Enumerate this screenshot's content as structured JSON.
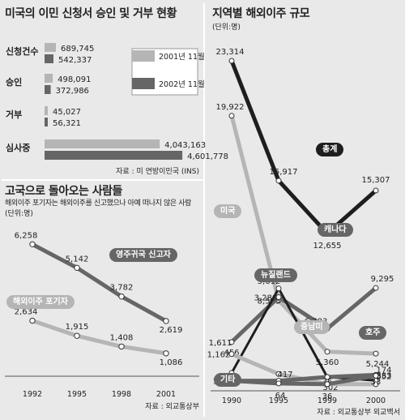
{
  "colors": {
    "background": "#e9e9e9",
    "series_light": "#b5b5b5",
    "series_dark": "#666666",
    "series_black": "#1e1e1e",
    "panel": "#ffffff"
  },
  "chart_data": [
    {
      "type": "bar",
      "title": "미국의 이민 신청서 승인 및 거부 현황",
      "categories": [
        "신청건수",
        "승인",
        "거부",
        "심사중"
      ],
      "series": [
        {
          "name": "2001년 11월",
          "values": [
            689745,
            498091,
            45027,
            4043163
          ],
          "labels": [
            "689,745",
            "498,091",
            "45,027",
            "4,043,163"
          ]
        },
        {
          "name": "2002년 11월",
          "values": [
            542337,
            372986,
            56321,
            4601778
          ],
          "labels": [
            "542,337",
            "372,986",
            "56,321",
            "4,601,778"
          ]
        }
      ],
      "source": "자료 : 미 연방이민국 (INS)"
    },
    {
      "type": "line",
      "title": "고국으로 돌아오는 사람들",
      "subtitle": "해외이주 포기자는 해외이주를 신고했으나 아예 떠나지 않은 사람",
      "unit": "(단위:명)",
      "x": [
        "1992",
        "1995",
        "1998",
        "2001"
      ],
      "series": [
        {
          "name": "영주귀국 신고자",
          "values": [
            6258,
            5142,
            3782,
            2619
          ],
          "labels": [
            "6,258",
            "5,142",
            "3,782",
            "2,619"
          ]
        },
        {
          "name": "해외이주 포기자",
          "values": [
            2634,
            1915,
            1408,
            1086
          ],
          "labels": [
            "2,634",
            "1,915",
            "1,408",
            "1,086"
          ]
        }
      ],
      "source": "자료 : 외교통상부"
    },
    {
      "type": "line",
      "title": "지역별 해외이주 규모",
      "unit": "(단위:명)",
      "x": [
        "1990",
        "1995",
        "1999",
        "2000"
      ],
      "series": [
        {
          "name": "총계",
          "values": [
            23314,
            15917,
            12655,
            15307
          ],
          "labels": [
            "23,314",
            "15,917",
            "12,655",
            "15,307"
          ]
        },
        {
          "name": "미국",
          "values": [
            19922,
            8535,
            5360,
            5244
          ],
          "labels": [
            "19,922",
            "8,535",
            "5,360",
            "5,244"
          ]
        },
        {
          "name": "캐나다",
          "values": [
            1611,
            3289,
            6783,
            9295
          ],
          "labels": [
            "1,611",
            "3,289",
            "6,783",
            "9,295"
          ]
        },
        {
          "name": "뉴질랜드",
          "values": [
            456,
            3612,
            302,
            174
          ],
          "labels": [
            "456",
            "3,612",
            "302",
            "174"
          ]
        },
        {
          "name": "중남미",
          "values": [
            1162,
            417,
            36,
            33
          ],
          "labels": [
            "1,162",
            "417",
            "36",
            "33"
          ]
        },
        {
          "name": "호주",
          "values": [
            163,
            163,
            302,
            383
          ],
          "labels": [
            "163",
            "",
            "",
            "383"
          ]
        },
        {
          "name": "기타",
          "values": [
            163,
            64,
            36,
            352
          ],
          "labels": [
            "",
            "64",
            "36",
            "352"
          ]
        }
      ],
      "source": "자료 : 외교통상부 외교백서"
    }
  ]
}
